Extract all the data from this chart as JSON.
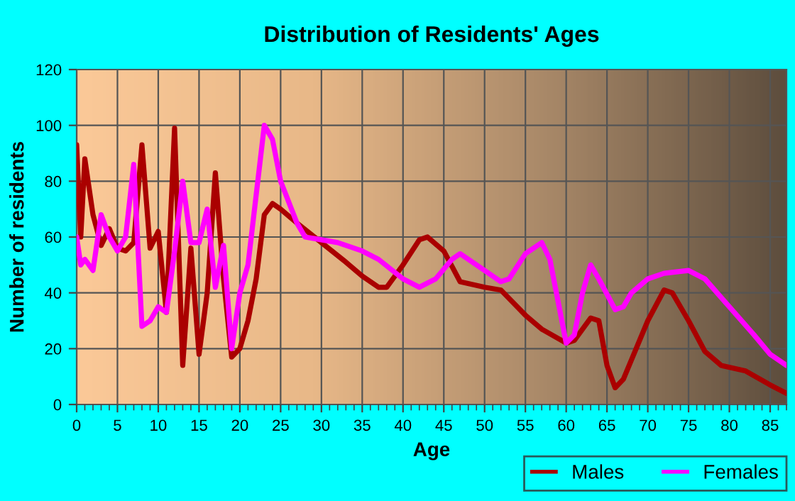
{
  "chart_data": {
    "type": "line",
    "title": "Distribution of Residents' Ages",
    "xlabel": "Age",
    "ylabel": "Number of residents",
    "xlim": [
      0,
      87
    ],
    "ylim": [
      0,
      120
    ],
    "xticks": [
      0,
      5,
      10,
      15,
      20,
      25,
      30,
      35,
      40,
      45,
      50,
      55,
      60,
      65,
      70,
      75,
      80,
      85
    ],
    "yticks": [
      0,
      20,
      40,
      60,
      80,
      100,
      120
    ],
    "grid": true,
    "legend": "bottom right",
    "marker": "none",
    "line_style": "solid",
    "series": [
      {
        "name": "Males",
        "color": "#aa0000",
        "x": [
          0,
          0.5,
          1,
          2,
          3,
          4,
          5,
          6,
          7,
          8,
          9,
          10,
          11,
          12,
          13,
          14,
          15,
          16,
          17,
          18,
          19,
          20,
          21,
          22,
          23,
          24,
          25,
          27,
          30,
          33,
          35,
          37,
          38,
          40,
          42,
          43,
          45,
          47,
          50,
          52,
          55,
          57,
          60,
          61,
          63,
          64,
          65,
          66,
          67,
          68,
          70,
          72,
          73,
          75,
          77,
          79,
          82,
          85,
          87
        ],
        "values": [
          93,
          60,
          88,
          68,
          57,
          63,
          56,
          55,
          58,
          93,
          56,
          62,
          33,
          99,
          14,
          56,
          18,
          40,
          83,
          45,
          17,
          20,
          30,
          45,
          68,
          72,
          70,
          65,
          58,
          51,
          46,
          42,
          42,
          50,
          59,
          60,
          55,
          44,
          42,
          41,
          32,
          27,
          22,
          23,
          31,
          30,
          14,
          6,
          9,
          16,
          30,
          41,
          40,
          30,
          19,
          14,
          12,
          7,
          4
        ]
      },
      {
        "name": "Females",
        "color": "#ff00ff",
        "x": [
          0,
          0.5,
          1,
          2,
          3,
          4,
          5,
          6,
          7,
          8,
          9,
          10,
          11,
          12,
          13,
          14,
          15,
          16,
          17,
          18,
          19,
          20,
          21,
          22,
          23,
          24,
          25,
          27,
          28,
          30,
          32,
          35,
          37,
          40,
          42,
          44,
          46,
          47,
          49,
          52,
          53,
          55,
          57,
          58,
          60,
          61,
          62,
          63,
          64,
          66,
          67,
          68,
          70,
          72,
          75,
          77,
          80,
          83,
          85,
          87
        ],
        "values": [
          60,
          50,
          52,
          48,
          68,
          60,
          55,
          60,
          86,
          28,
          30,
          35,
          33,
          55,
          80,
          58,
          58,
          70,
          42,
          57,
          20,
          40,
          50,
          75,
          100,
          95,
          80,
          65,
          60,
          59,
          58,
          55,
          52,
          45,
          42,
          45,
          52,
          54,
          50,
          44,
          45,
          54,
          58,
          52,
          22,
          25,
          40,
          50,
          45,
          34,
          35,
          40,
          45,
          47,
          48,
          45,
          35,
          25,
          18,
          14
        ]
      }
    ]
  }
}
